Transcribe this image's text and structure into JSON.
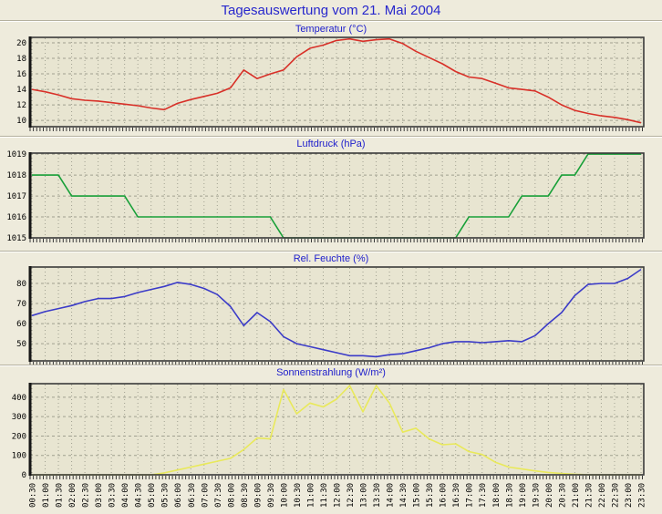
{
  "header": {
    "title": "Tagesauswertung vom 21. Mai 2004"
  },
  "colors": {
    "page_background": "#eeebdc",
    "plot_background": "#e8e5d1",
    "grid": "#a0a090",
    "frame": "#3a3a3a",
    "title_text": "#2727cc",
    "axis_text": "#000000",
    "temperature_line": "#d83028",
    "pressure_line": "#18a038",
    "humidity_line": "#3b3bc8",
    "radiation_line": "#e9e95a"
  },
  "x_axis": {
    "labels": [
      "00:30",
      "01:00",
      "01:30",
      "02:00",
      "02:30",
      "03:00",
      "03:30",
      "04:00",
      "04:30",
      "05:00",
      "05:30",
      "06:00",
      "06:30",
      "07:00",
      "07:30",
      "08:00",
      "08:30",
      "09:00",
      "09:30",
      "10:00",
      "10:30",
      "11:00",
      "11:30",
      "12:00",
      "12:30",
      "13:00",
      "13:30",
      "14:00",
      "14:30",
      "15:00",
      "15:30",
      "16:00",
      "16:30",
      "17:00",
      "17:30",
      "18:00",
      "18:30",
      "19:00",
      "19:30",
      "20:00",
      "20:30",
      "21:00",
      "21:30",
      "22:00",
      "22:30",
      "23:00",
      "23:30"
    ]
  },
  "chart_data": [
    {
      "type": "line",
      "title": "Temperatur (°C)",
      "unit": "°C",
      "series_color": "#d83028",
      "y_ticks": [
        20,
        18,
        16,
        14,
        12,
        10
      ],
      "y_range": [
        9.2,
        20.7
      ],
      "grid": true,
      "values": [
        14.0,
        13.7,
        13.3,
        12.8,
        12.6,
        12.5,
        12.3,
        12.1,
        11.9,
        11.6,
        11.4,
        12.2,
        12.7,
        13.1,
        13.5,
        14.2,
        16.5,
        15.4,
        16.0,
        16.5,
        18.2,
        19.3,
        19.7,
        20.3,
        20.5,
        20.2,
        20.4,
        20.5,
        19.9,
        18.9,
        18.1,
        17.3,
        16.3,
        15.6,
        15.4,
        14.8,
        14.2,
        14.0,
        13.8,
        13.0,
        12.0,
        11.3,
        10.9,
        10.6,
        10.4,
        10.1,
        9.7
      ]
    },
    {
      "type": "line",
      "title": "Luftdruck (hPa)",
      "unit": "hPa",
      "series_color": "#18a038",
      "y_ticks": [
        1019,
        1018,
        1017,
        1016,
        1015
      ],
      "y_range": [
        1015,
        1019.05
      ],
      "grid": true,
      "values": [
        1018,
        1018,
        1018,
        1017,
        1017,
        1017,
        1017,
        1017,
        1016,
        1016,
        1016,
        1016,
        1016,
        1016,
        1016,
        1016,
        1016,
        1016,
        1016,
        1015,
        1015,
        1015,
        1015,
        1015,
        1015,
        1015,
        1015,
        1015,
        1015,
        1015,
        1015,
        1015,
        1015,
        1016,
        1016,
        1016,
        1016,
        1017,
        1017,
        1017,
        1018,
        1018,
        1019,
        1019,
        1019,
        1019,
        1019
      ]
    },
    {
      "type": "line",
      "title": "Rel. Feuchte (%)",
      "unit": "%",
      "series_color": "#3b3bc8",
      "y_ticks": [
        80,
        70,
        60,
        50
      ],
      "y_range": [
        41.4,
        88.2
      ],
      "grid": true,
      "values": [
        64,
        66,
        67.5,
        69,
        71,
        72.5,
        72.5,
        73.5,
        75.5,
        77,
        78.5,
        80.5,
        79.5,
        77.5,
        74.5,
        68.5,
        59,
        65.5,
        61,
        53.5,
        50,
        48.5,
        47,
        45.5,
        44,
        44,
        43.5,
        44.5,
        45,
        46.5,
        48,
        50,
        51,
        51,
        50.5,
        51,
        51.5,
        51,
        54,
        60,
        65.5,
        74,
        79.5,
        80,
        80,
        82.5,
        87
      ]
    },
    {
      "type": "line",
      "title": "Sonnenstrahlung (W/m²)",
      "unit": "W/m²",
      "series_color": "#e9e95a",
      "y_ticks": [
        400,
        300,
        200,
        100,
        0
      ],
      "y_range": [
        0,
        470
      ],
      "grid": true,
      "values": [
        0,
        0,
        0,
        0,
        0,
        0,
        0,
        0,
        0,
        0,
        10,
        25,
        40,
        55,
        70,
        85,
        130,
        190,
        185,
        440,
        315,
        370,
        350,
        390,
        460,
        325,
        460,
        370,
        220,
        240,
        185,
        155,
        160,
        120,
        105,
        65,
        40,
        30,
        20,
        12,
        7,
        3,
        0,
        0,
        0,
        0,
        0
      ]
    }
  ]
}
